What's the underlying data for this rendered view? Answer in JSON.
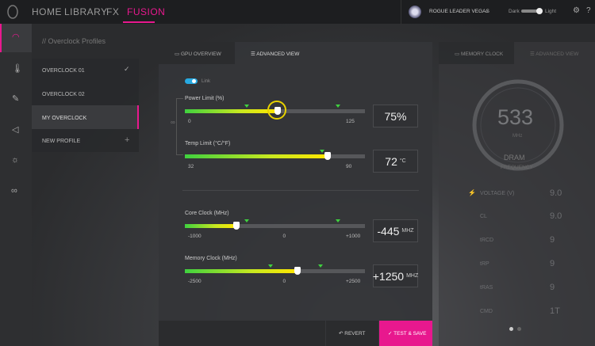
{
  "nav": {
    "items": [
      "HOME",
      "LIBRARY",
      "FX",
      "FUSION"
    ],
    "user": "ROGUE LEADER VEGAS",
    "theme_dark": "Dark",
    "theme_light": "Light"
  },
  "sidebar": {
    "title": "// Overclock Profiles",
    "profiles": [
      "OVERCLOCK 01",
      "OVERCLOCK 02",
      "MY OVERCLOCK",
      "NEW PROFILE"
    ]
  },
  "panel": {
    "tabs": [
      "GPU OVERVIEW",
      "ADVANCED VIEW"
    ],
    "link": "Link",
    "sliders": [
      {
        "label": "Power Limit (%)",
        "min": "0",
        "max": "125",
        "value": "75%"
      },
      {
        "label": "Temp Limit (°C/°F)",
        "min": "32",
        "max": "90",
        "value": "72",
        "unit": "°C"
      },
      {
        "label": "Core Clock (MHz)",
        "min": "-1000",
        "mid": "0",
        "max": "+1000",
        "value": "-445",
        "unit": "MHZ"
      },
      {
        "label": "Memory Clock (MHz)",
        "min": "-2500",
        "mid": "0",
        "max": "+2500",
        "value": "+1250",
        "unit": "MHZ"
      }
    ],
    "buttons": [
      "REVERT",
      "TEST & SAVE"
    ]
  },
  "memory": {
    "tabs": [
      "MEMORY CLOCK",
      "ADVANCED VIEW"
    ],
    "frequency": "533",
    "unit": "MHz",
    "caption_1": "DRAM",
    "caption_2": "FREQUENCY",
    "timings": [
      {
        "name": "VOLTAGE (V)",
        "value": "9.0"
      },
      {
        "name": "CL",
        "value": "9.0"
      },
      {
        "name": "tRCD",
        "value": "9"
      },
      {
        "name": "tRP",
        "value": "9"
      },
      {
        "name": "tRAS",
        "value": "9"
      },
      {
        "name": "CMD",
        "value": "1T"
      }
    ]
  }
}
